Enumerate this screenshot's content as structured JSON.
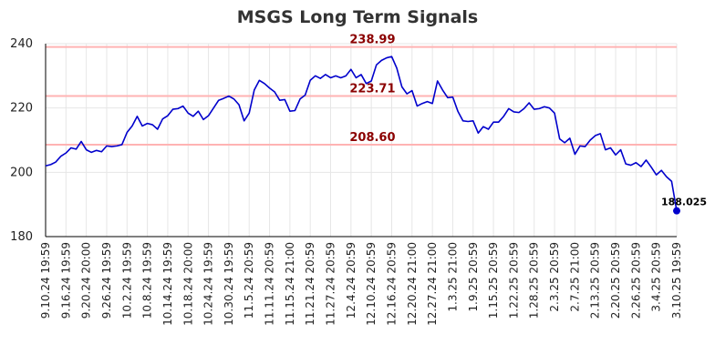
{
  "chart_data": {
    "type": "line",
    "title": "MSGS Long Term Signals",
    "xlabel": "",
    "ylabel": "",
    "ylim": [
      180,
      240
    ],
    "yticks": [
      180,
      200,
      220,
      240
    ],
    "grid": true,
    "x_tick_labels": [
      "9.10.24 19:59",
      "9.16.24 19:59",
      "9.20.24 20:00",
      "9.26.24 19:59",
      "10.2.24 19:59",
      "10.8.24 19:59",
      "10.14.24 19:59",
      "10.18.24 20:00",
      "10.24.24 19:59",
      "10.30.24 19:59",
      "11.5.24 20:59",
      "11.11.24 20:59",
      "11.15.24 21:00",
      "11.21.24 20:59",
      "11.27.24 20:59",
      "12.4.24 20:59",
      "12.10.24 20:59",
      "12.16.24 20:59",
      "12.20.24 21:00",
      "12.27.24 21:00",
      "1.3.25 21:00",
      "1.9.25 20:59",
      "1.15.25 20:59",
      "1.22.25 20:59",
      "1.28.25 20:59",
      "2.3.25 20:59",
      "2.7.25 21:00",
      "2.13.25 20:59",
      "2.20.25 20:59",
      "2.26.25 20:59",
      "3.4.25 20:59",
      "3.10.25 19:59"
    ],
    "series": [
      {
        "color": "#0000cc",
        "values": [
          202.0,
          202.4,
          203.2,
          205.0,
          206.0,
          207.6,
          207.2,
          209.6,
          207.0,
          206.2,
          206.8,
          206.4,
          208.2,
          208.0,
          208.2,
          208.6,
          212.4,
          214.4,
          217.4,
          214.4,
          215.2,
          214.8,
          213.4,
          216.6,
          217.6,
          219.6,
          219.8,
          220.6,
          218.4,
          217.4,
          219.0,
          216.4,
          217.6,
          220.0,
          222.4,
          223.0,
          223.7,
          222.8,
          221.0,
          216.0,
          218.4,
          225.6,
          228.6,
          227.6,
          226.2,
          225.0,
          222.4,
          222.6,
          219.0,
          219.2,
          222.8,
          224.0,
          228.6,
          230.0,
          229.2,
          230.4,
          229.4,
          230.0,
          229.4,
          230.0,
          232.0,
          229.4,
          230.4,
          227.6,
          228.4,
          233.4,
          234.8,
          235.6,
          236.0,
          232.4,
          226.6,
          224.4,
          225.4,
          220.6,
          221.4,
          222.0,
          221.4,
          228.4,
          225.6,
          223.2,
          223.4,
          219.0,
          216.0,
          215.8,
          216.0,
          212.2,
          214.2,
          213.4,
          215.6,
          215.6,
          217.4,
          219.8,
          218.8,
          218.6,
          219.8,
          221.6,
          219.6,
          219.8,
          220.4,
          220.0,
          218.4,
          210.4,
          209.2,
          210.6,
          205.6,
          208.2,
          208.0,
          210.0,
          211.4,
          212.0,
          207.0,
          207.6,
          205.4,
          207.0,
          202.6,
          202.2,
          203.0,
          201.8,
          203.8,
          201.6,
          199.2,
          200.6,
          198.6,
          197.2,
          188.025
        ]
      }
    ],
    "signal_lines": [
      {
        "value": 238.99,
        "label": "238.99"
      },
      {
        "value": 223.71,
        "label": "223.71"
      },
      {
        "value": 208.6,
        "label": "208.60"
      }
    ],
    "signal_line_color": "#ffb3b3",
    "signal_label_color": "#8b0000",
    "last_value": 188.025,
    "last_label": "188.025"
  }
}
